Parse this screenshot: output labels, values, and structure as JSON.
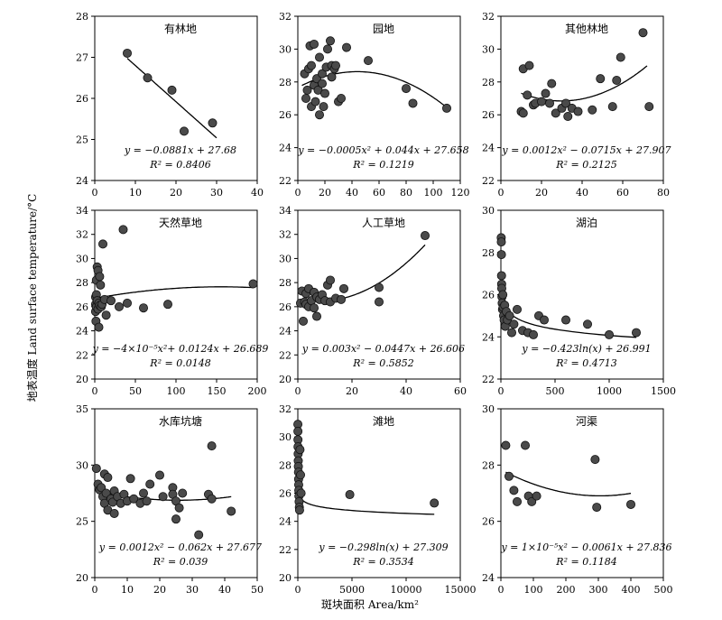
{
  "ylabel": "地表温度 Land surface temperature/°C",
  "xlabel": "斑块面积 Area/km²",
  "chart_data": [
    {
      "type": "scatter",
      "title": "有林地",
      "xlim": [
        0,
        40
      ],
      "ylim": [
        24,
        28
      ],
      "xticks": [
        0,
        10,
        20,
        30,
        40
      ],
      "yticks": [
        24,
        25,
        26,
        27,
        28
      ],
      "points": [
        [
          8,
          27.1
        ],
        [
          13,
          26.5
        ],
        [
          19,
          26.2
        ],
        [
          22,
          25.2
        ],
        [
          29,
          25.4
        ]
      ],
      "fit": {
        "kind": "linear",
        "a": -0.0881,
        "b": 27.68,
        "x0": 8,
        "x1": 30
      },
      "equation": "y = −0.0881x + 27.68",
      "r2": "R² = 0.8406"
    },
    {
      "type": "scatter",
      "title": "园地",
      "xlim": [
        0,
        120
      ],
      "ylim": [
        22,
        32
      ],
      "xticks": [
        0,
        20,
        40,
        60,
        80,
        100,
        120
      ],
      "yticks": [
        22,
        24,
        26,
        28,
        30,
        32
      ],
      "points": [
        [
          5,
          28.5
        ],
        [
          6,
          27.0
        ],
        [
          7,
          27.5
        ],
        [
          8,
          28.8
        ],
        [
          9,
          30.2
        ],
        [
          10,
          26.5
        ],
        [
          10,
          29.0
        ],
        [
          12,
          30.3
        ],
        [
          12,
          27.8
        ],
        [
          13,
          26.8
        ],
        [
          14,
          28.2
        ],
        [
          15,
          27.5
        ],
        [
          16,
          26.0
        ],
        [
          16,
          29.5
        ],
        [
          18,
          27.9
        ],
        [
          18,
          28.5
        ],
        [
          19,
          26.5
        ],
        [
          20,
          27.3
        ],
        [
          21,
          28.9
        ],
        [
          22,
          30.0
        ],
        [
          24,
          30.5
        ],
        [
          25,
          29.0
        ],
        [
          25,
          28.3
        ],
        [
          27,
          28.8
        ],
        [
          28,
          29.0
        ],
        [
          30,
          26.8
        ],
        [
          32,
          27.0
        ],
        [
          36,
          30.1
        ],
        [
          52,
          29.3
        ],
        [
          80,
          27.6
        ],
        [
          85,
          26.7
        ],
        [
          110,
          26.4
        ]
      ],
      "fit": {
        "kind": "poly2",
        "a": -0.0005,
        "b": 0.044,
        "c": 27.658,
        "x0": 3,
        "x1": 110
      },
      "equation": "y = −0.0005x² + 0.044x + 27.658",
      "r2": "R² = 0.1219"
    },
    {
      "type": "scatter",
      "title": "其他林地",
      "xlim": [
        0,
        80
      ],
      "ylim": [
        22,
        32
      ],
      "xticks": [
        0,
        20,
        40,
        60,
        80
      ],
      "yticks": [
        22,
        24,
        26,
        28,
        30,
        32
      ],
      "points": [
        [
          10,
          26.2
        ],
        [
          11,
          26.1
        ],
        [
          11,
          28.8
        ],
        [
          13,
          27.2
        ],
        [
          14,
          29.0
        ],
        [
          16,
          26.6
        ],
        [
          17,
          26.7
        ],
        [
          20,
          26.8
        ],
        [
          22,
          27.3
        ],
        [
          24,
          26.7
        ],
        [
          25,
          27.9
        ],
        [
          27,
          26.1
        ],
        [
          30,
          26.4
        ],
        [
          32,
          26.7
        ],
        [
          33,
          25.9
        ],
        [
          35,
          26.4
        ],
        [
          38,
          26.2
        ],
        [
          45,
          26.3
        ],
        [
          49,
          28.2
        ],
        [
          55,
          26.5
        ],
        [
          57,
          28.1
        ],
        [
          59,
          29.5
        ],
        [
          70,
          31.0
        ],
        [
          73,
          26.5
        ]
      ],
      "fit": {
        "kind": "poly2",
        "a": 0.0012,
        "b": -0.0715,
        "c": 27.907,
        "x0": 10,
        "x1": 72
      },
      "equation": "y = 0.0012x² − 0.0715x + 27.907",
      "r2": "R² = 0.2125"
    },
    {
      "type": "scatter",
      "title": "天然草地",
      "xlim": [
        0,
        200
      ],
      "ylim": [
        20,
        34
      ],
      "xticks": [
        0,
        50,
        100,
        150,
        200
      ],
      "yticks": [
        20,
        22,
        24,
        26,
        28,
        30,
        32,
        34
      ],
      "points": [
        [
          1,
          26.8
        ],
        [
          1,
          26.2
        ],
        [
          1,
          25.6
        ],
        [
          1.5,
          24.8
        ],
        [
          2,
          27.0
        ],
        [
          2,
          26.0
        ],
        [
          2,
          28.2
        ],
        [
          3,
          29.3
        ],
        [
          3,
          26.5
        ],
        [
          4,
          29.0
        ],
        [
          4,
          25.8
        ],
        [
          5,
          26.3
        ],
        [
          5,
          24.3
        ],
        [
          6,
          28.5
        ],
        [
          6,
          26.1
        ],
        [
          7,
          27.8
        ],
        [
          8,
          26.0
        ],
        [
          9,
          26.2
        ],
        [
          10,
          31.2
        ],
        [
          12,
          26.6
        ],
        [
          14,
          25.3
        ],
        [
          20,
          26.5
        ],
        [
          30,
          26.0
        ],
        [
          35,
          32.4
        ],
        [
          40,
          26.3
        ],
        [
          60,
          25.9
        ],
        [
          90,
          26.2
        ],
        [
          195,
          27.9
        ]
      ],
      "fit": {
        "kind": "poly2",
        "a": -4e-05,
        "b": 0.0124,
        "c": 26.689,
        "x0": 1,
        "x1": 195
      },
      "equation": "y = −4×10⁻⁵x²+ 0.0124x + 26.689",
      "r2": "R² = 0.0148"
    },
    {
      "type": "scatter",
      "title": "人工草地",
      "xlim": [
        0,
        60
      ],
      "ylim": [
        20,
        34
      ],
      "xticks": [
        0,
        20,
        40,
        60
      ],
      "yticks": [
        20,
        22,
        24,
        26,
        28,
        30,
        32,
        34
      ],
      "points": [
        [
          1,
          26.3
        ],
        [
          1.5,
          27.3
        ],
        [
          2,
          24.8
        ],
        [
          2.5,
          26.4
        ],
        [
          3,
          26.2
        ],
        [
          3,
          27.1
        ],
        [
          4,
          27.5
        ],
        [
          4,
          26.0
        ],
        [
          5,
          26.5
        ],
        [
          6,
          27.2
        ],
        [
          6,
          25.9
        ],
        [
          7,
          25.2
        ],
        [
          7,
          26.8
        ],
        [
          8,
          26.6
        ],
        [
          9,
          27.0
        ],
        [
          10,
          26.5
        ],
        [
          11,
          27.8
        ],
        [
          12,
          26.4
        ],
        [
          12,
          28.2
        ],
        [
          14,
          26.7
        ],
        [
          16,
          26.6
        ],
        [
          17,
          27.5
        ],
        [
          30,
          27.6
        ],
        [
          30,
          26.4
        ],
        [
          47,
          31.9
        ]
      ],
      "fit": {
        "kind": "poly2",
        "a": 0.003,
        "b": -0.0447,
        "c": 26.606,
        "x0": 1,
        "x1": 47
      },
      "equation": "y = 0.003x² − 0.0447x + 26.606",
      "r2": "R² = 0.5852"
    },
    {
      "type": "scatter",
      "title": "湖泊",
      "xlim": [
        0,
        1500
      ],
      "ylim": [
        22,
        30
      ],
      "xticks": [
        0,
        500,
        1000,
        1500
      ],
      "yticks": [
        22,
        24,
        26,
        28,
        30
      ],
      "points": [
        [
          3,
          28.7
        ],
        [
          4,
          28.5
        ],
        [
          5,
          27.9
        ],
        [
          6,
          26.9
        ],
        [
          7,
          26.5
        ],
        [
          8,
          26.3
        ],
        [
          10,
          25.9
        ],
        [
          12,
          25.6
        ],
        [
          15,
          25.3
        ],
        [
          18,
          26.0
        ],
        [
          20,
          25.4
        ],
        [
          25,
          25.0
        ],
        [
          30,
          24.8
        ],
        [
          35,
          25.5
        ],
        [
          40,
          24.5
        ],
        [
          50,
          25.2
        ],
        [
          60,
          24.8
        ],
        [
          80,
          25.0
        ],
        [
          100,
          24.2
        ],
        [
          120,
          24.6
        ],
        [
          150,
          25.3
        ],
        [
          200,
          24.3
        ],
        [
          250,
          24.2
        ],
        [
          300,
          24.1
        ],
        [
          350,
          25.0
        ],
        [
          400,
          24.8
        ],
        [
          600,
          24.8
        ],
        [
          800,
          24.6
        ],
        [
          1000,
          24.1
        ],
        [
          1250,
          24.2
        ]
      ],
      "fit": {
        "kind": "log",
        "a": -0.423,
        "b": 26.991,
        "x0": 2,
        "x1": 1250
      },
      "equation": "y = −0.423ln(x) + 26.991",
      "r2": "R² = 0.4713"
    },
    {
      "type": "scatter",
      "title": "水库坑塘",
      "xlim": [
        0,
        50
      ],
      "ylim": [
        20,
        35
      ],
      "xticks": [
        0,
        10,
        20,
        30,
        40,
        50
      ],
      "yticks": [
        20,
        25,
        30,
        35
      ],
      "points": [
        [
          0.5,
          29.7
        ],
        [
          1,
          28.3
        ],
        [
          1.5,
          27.8
        ],
        [
          2,
          28.0
        ],
        [
          2.5,
          27.2
        ],
        [
          3,
          29.2
        ],
        [
          3,
          26.6
        ],
        [
          3.5,
          27.5
        ],
        [
          4,
          28.9
        ],
        [
          4,
          26.0
        ],
        [
          5,
          27.0
        ],
        [
          5.5,
          26.7
        ],
        [
          6,
          27.7
        ],
        [
          6,
          25.7
        ],
        [
          7,
          27.2
        ],
        [
          8,
          26.6
        ],
        [
          9,
          27.4
        ],
        [
          10,
          26.8
        ],
        [
          11,
          28.8
        ],
        [
          12,
          27.0
        ],
        [
          14,
          26.6
        ],
        [
          15,
          27.5
        ],
        [
          16,
          26.8
        ],
        [
          17,
          28.3
        ],
        [
          20,
          29.1
        ],
        [
          21,
          27.2
        ],
        [
          24,
          28.0
        ],
        [
          24,
          27.4
        ],
        [
          25,
          25.2
        ],
        [
          25,
          26.8
        ],
        [
          26,
          26.2
        ],
        [
          27,
          27.5
        ],
        [
          32,
          23.8
        ],
        [
          35,
          27.4
        ],
        [
          36,
          31.7
        ],
        [
          36,
          27.0
        ],
        [
          42,
          25.9
        ]
      ],
      "fit": {
        "kind": "poly2",
        "a": 0.0012,
        "b": -0.062,
        "c": 27.677,
        "x0": 0.5,
        "x1": 42
      },
      "equation": "y = 0.0012x² − 0.062x + 27.677",
      "r2": "R² = 0.039"
    },
    {
      "type": "scatter",
      "title": "滩地",
      "xlim": [
        0,
        15000
      ],
      "ylim": [
        20,
        32
      ],
      "xticks": [
        0,
        5000,
        10000,
        15000
      ],
      "yticks": [
        20,
        22,
        24,
        26,
        28,
        30,
        32
      ],
      "points": [
        [
          5,
          30.9
        ],
        [
          10,
          30.4
        ],
        [
          15,
          29.8
        ],
        [
          20,
          29.3
        ],
        [
          30,
          28.8
        ],
        [
          40,
          28.3
        ],
        [
          50,
          27.9
        ],
        [
          60,
          27.5
        ],
        [
          70,
          27.0
        ],
        [
          80,
          26.6
        ],
        [
          90,
          26.2
        ],
        [
          100,
          25.8
        ],
        [
          120,
          25.4
        ],
        [
          140,
          25.0
        ],
        [
          160,
          24.8
        ],
        [
          200,
          29.1
        ],
        [
          250,
          27.3
        ],
        [
          300,
          26.0
        ],
        [
          4800,
          25.9
        ],
        [
          12600,
          25.3
        ]
      ],
      "fit": {
        "kind": "log",
        "a": -0.298,
        "b": 27.309,
        "x0": 10,
        "x1": 12600
      },
      "equation": "y = −0.298ln(x) + 27.309",
      "r2": "R² = 0.3534"
    },
    {
      "type": "scatter",
      "title": "河渠",
      "xlim": [
        0,
        500
      ],
      "ylim": [
        24,
        30
      ],
      "xticks": [
        0,
        100,
        200,
        300,
        400,
        500
      ],
      "yticks": [
        24,
        26,
        28,
        30
      ],
      "points": [
        [
          15,
          28.7
        ],
        [
          25,
          27.6
        ],
        [
          40,
          27.1
        ],
        [
          50,
          26.7
        ],
        [
          75,
          28.7
        ],
        [
          85,
          26.9
        ],
        [
          95,
          26.7
        ],
        [
          110,
          26.9
        ],
        [
          290,
          28.2
        ],
        [
          295,
          26.5
        ],
        [
          400,
          26.6
        ]
      ],
      "fit": {
        "kind": "poly2",
        "a": 1e-05,
        "b": -0.0061,
        "c": 27.836,
        "x0": 15,
        "x1": 400
      },
      "equation": "y = 1×10⁻⁵x² − 0.0061x + 27.836",
      "r2": "R² = 0.1184"
    }
  ]
}
